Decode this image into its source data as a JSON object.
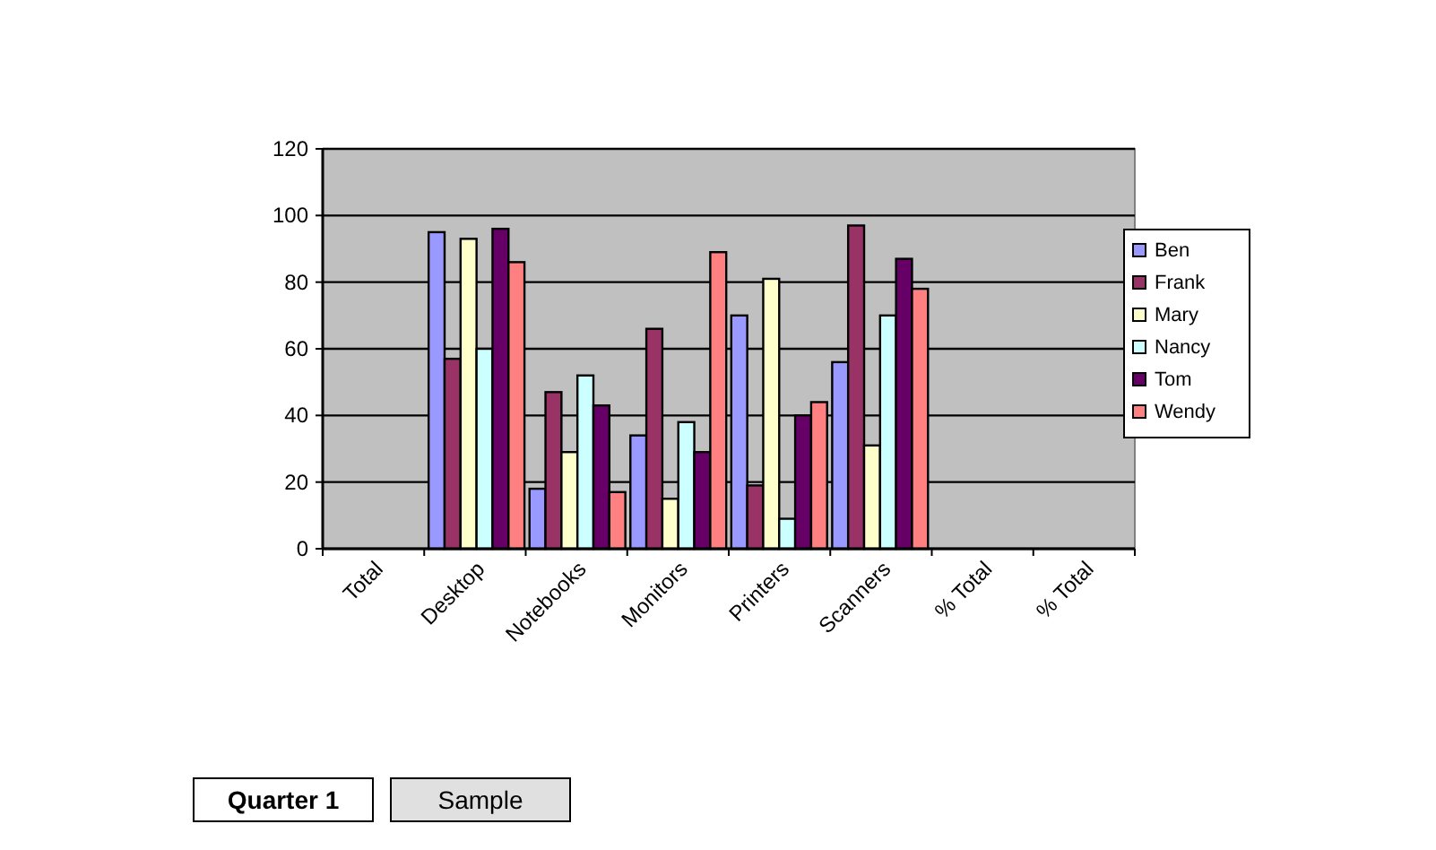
{
  "chart_data": {
    "type": "bar",
    "categories": [
      "Total",
      "Desktop",
      "Notebooks",
      "Monitors",
      "Printers",
      "Scanners",
      "% Total",
      "% Total"
    ],
    "series": [
      {
        "name": "Ben",
        "color": "#9999ff",
        "values": [
          null,
          95,
          18,
          34,
          70,
          56,
          null,
          null
        ]
      },
      {
        "name": "Frank",
        "color": "#993366",
        "values": [
          null,
          57,
          47,
          66,
          19,
          97,
          null,
          null
        ]
      },
      {
        "name": "Mary",
        "color": "#ffffcc",
        "values": [
          null,
          93,
          29,
          15,
          81,
          31,
          null,
          null
        ]
      },
      {
        "name": "Nancy",
        "color": "#ccffff",
        "values": [
          null,
          60,
          52,
          38,
          9,
          70,
          null,
          null
        ]
      },
      {
        "name": "Tom",
        "color": "#660066",
        "values": [
          null,
          96,
          43,
          29,
          40,
          87,
          null,
          null
        ]
      },
      {
        "name": "Wendy",
        "color": "#ff8080",
        "values": [
          null,
          86,
          17,
          89,
          44,
          78,
          null,
          null
        ]
      }
    ],
    "ylim": [
      0,
      120
    ],
    "yticks": [
      0,
      20,
      40,
      60,
      80,
      100,
      120
    ],
    "grid": "y",
    "legend": "right",
    "annotations": [
      "Quarter 1",
      "Sample"
    ]
  }
}
